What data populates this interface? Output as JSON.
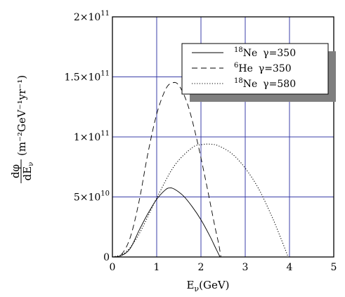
{
  "chart_data": {
    "type": "line",
    "title": "",
    "xlabel": {
      "main": "E",
      "sub": "ν",
      "rest": "(GeV)"
    },
    "ylabel": {
      "frac_num": "dφ",
      "frac_den_main": "dE",
      "frac_den_sub": "ν",
      "units": "(m⁻²GeV⁻¹yr⁻¹)"
    },
    "xlim": [
      0,
      5
    ],
    "ylim": [
      0,
      200000000000.0
    ],
    "x_ticks": [
      {
        "value": 0,
        "label": "0"
      },
      {
        "value": 1,
        "label": "1"
      },
      {
        "value": 2,
        "label": "2"
      },
      {
        "value": 3,
        "label": "3"
      },
      {
        "value": 4,
        "label": "4"
      },
      {
        "value": 5,
        "label": "5"
      }
    ],
    "y_ticks": [
      {
        "value": 0,
        "mant": "0",
        "exp": ""
      },
      {
        "value": 50000000000.0,
        "mant": "5×10",
        "exp": "10"
      },
      {
        "value": 100000000000.0,
        "mant": "1×10",
        "exp": "11"
      },
      {
        "value": 150000000000.0,
        "mant": "1.5×10",
        "exp": "11"
      },
      {
        "value": 200000000000.0,
        "mant": "2×10",
        "exp": "11"
      }
    ],
    "grid": true,
    "legend_position": "top-right",
    "series": [
      {
        "legend_iso": "18",
        "legend_el": "Ne",
        "legend_gamma": "γ=350",
        "style": "solid",
        "x": [
          0,
          0.2,
          0.4,
          0.6,
          0.8,
          1.0,
          1.2,
          1.3,
          1.4,
          1.6,
          1.8,
          2.0,
          2.2,
          2.35,
          2.43
        ],
        "y": [
          0,
          1100000000.0,
          7000000000.0,
          22000000000.0,
          36000000000.0,
          48000000000.0,
          56000000000.0,
          57500000000.0,
          56500000000.0,
          51000000000.0,
          42000000000.0,
          31000000000.0,
          17500000000.0,
          6000000000.0,
          0
        ]
      },
      {
        "legend_iso": "6",
        "legend_el": "He",
        "legend_gamma": "γ=350",
        "style": "dashed",
        "x": [
          0,
          0.2,
          0.4,
          0.6,
          0.8,
          1.0,
          1.2,
          1.35,
          1.5,
          1.7,
          1.9,
          2.1,
          2.3,
          2.4,
          2.45
        ],
        "y": [
          0,
          2000000000.0,
          16000000000.0,
          46000000000.0,
          86000000000.0,
          119000000000.0,
          139500000000.0,
          145000000000.0,
          143000000000.0,
          127000000000.0,
          99000000000.0,
          65000000000.0,
          28000000000.0,
          11000000000.0,
          0
        ]
      },
      {
        "legend_iso": "18",
        "legend_el": "Ne",
        "legend_gamma": "γ=580",
        "style": "dotted",
        "x": [
          0,
          0.3,
          0.6,
          1.0,
          1.4,
          1.8,
          2.0,
          2.2,
          2.4,
          2.7,
          3.0,
          3.3,
          3.6,
          3.8,
          3.97
        ],
        "y": [
          0,
          4000000000.0,
          19000000000.0,
          49000000000.0,
          76000000000.0,
          91000000000.0,
          93500000000.0,
          94000000000.0,
          92500000000.0,
          86000000000.0,
          74000000000.0,
          57000000000.0,
          34000000000.0,
          16000000000.0,
          0
        ]
      }
    ]
  }
}
